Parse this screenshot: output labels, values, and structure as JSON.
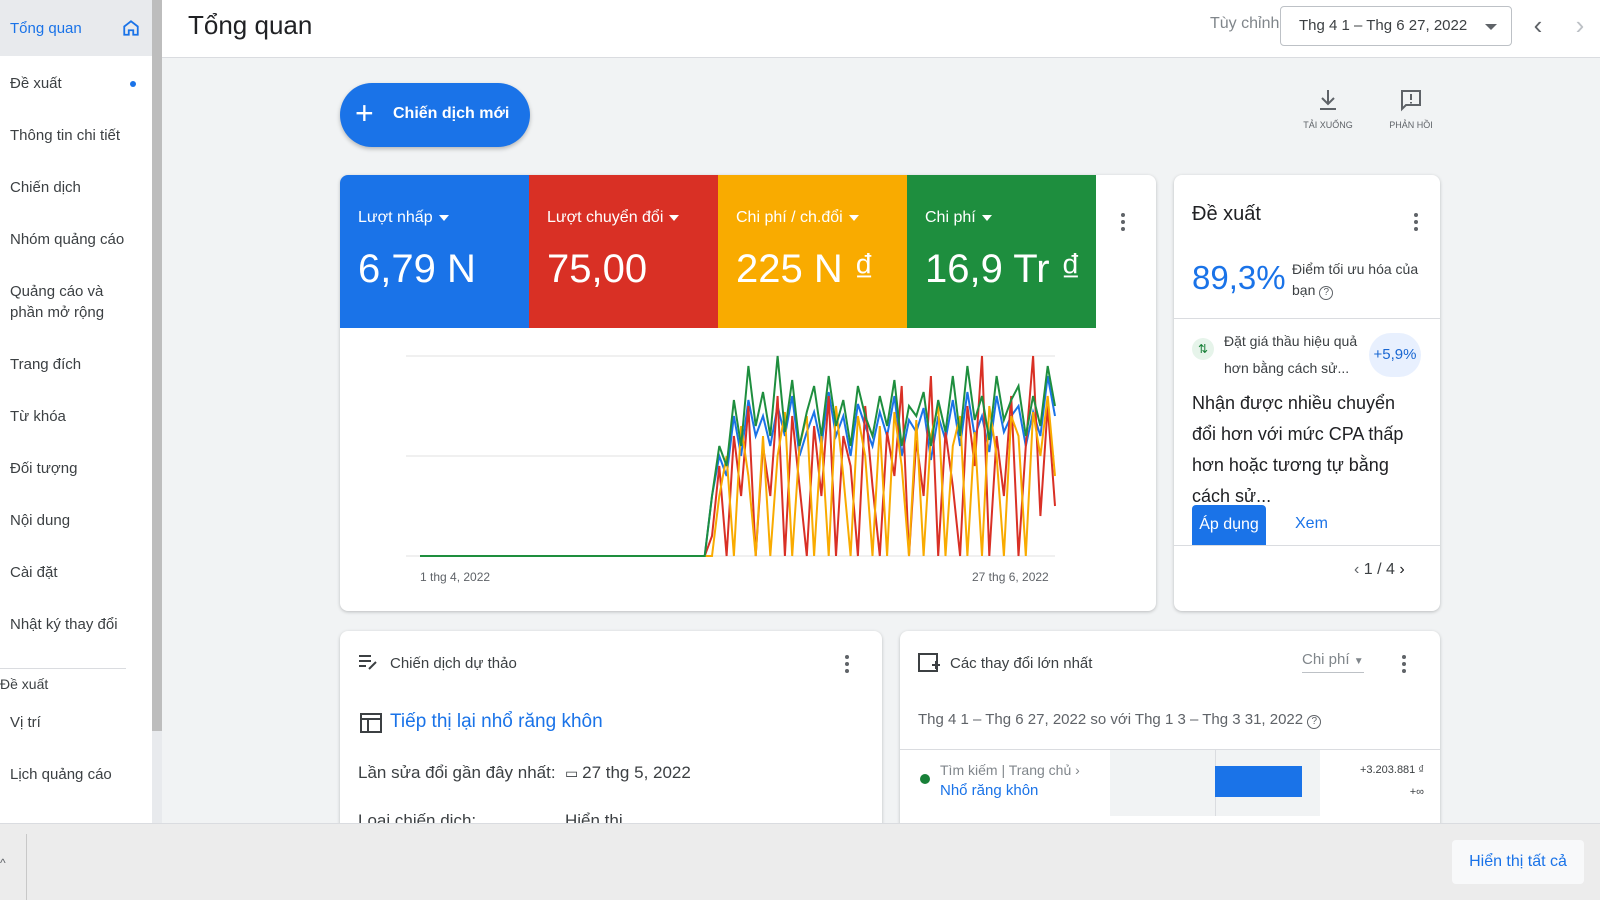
{
  "sidebar": {
    "items": [
      {
        "label": "Tổng quan",
        "active": true
      },
      {
        "label": "Đề xuất"
      },
      {
        "label": "Thông tin chi tiết"
      },
      {
        "label": "Chiến dịch"
      },
      {
        "label": "Nhóm quảng cáo"
      },
      {
        "label": "Quảng cáo và phần mở rộng"
      },
      {
        "label": "Trang đích"
      },
      {
        "label": "Từ khóa"
      },
      {
        "label": "Đối tượng"
      },
      {
        "label": "Nội dung"
      },
      {
        "label": "Cài đặt"
      },
      {
        "label": "Nhật ký thay đổi"
      }
    ],
    "section_label": "Đề xuất",
    "more_items": [
      {
        "label": "Vị trí"
      },
      {
        "label": "Lịch quảng cáo"
      }
    ]
  },
  "header": {
    "title": "Tổng quan",
    "custom_label": "Tùy chỉnh",
    "date_range": "Thg 4 1 – Thg 6 27, 2022",
    "prev_arrow": "‹",
    "next_arrow": "›"
  },
  "toolbar": {
    "new_campaign_label": "Chiến dịch mới",
    "download_label": "TẢI XUỐNG",
    "feedback_label": "PHẢN HỒI"
  },
  "metrics": [
    {
      "label": "Lượt nhấp",
      "value": "6,79 N",
      "color": "#1a73e8"
    },
    {
      "label": "Lượt chuyển đổi",
      "value": "75,00",
      "color": "#d93025"
    },
    {
      "label": "Chi phí / ch.đổi",
      "value": "225 N ₫",
      "color": "#f9ab00"
    },
    {
      "label": "Chi phí",
      "value": "16,9 Tr ₫",
      "color": "#1e8e3e"
    }
  ],
  "chart_data": {
    "type": "line",
    "x_start_label": "1 thg 4, 2022",
    "x_end_label": "27 thg 6, 2022",
    "points": 88,
    "grid": true,
    "series": [
      {
        "name": "Lượt nhấp",
        "color": "#1a73e8",
        "values": [
          0,
          0,
          0,
          0,
          0,
          0,
          0,
          0,
          0,
          0,
          0,
          0,
          0,
          0,
          0,
          0,
          0,
          0,
          0,
          0,
          0,
          0,
          0,
          0,
          0,
          0,
          0,
          0,
          0,
          0,
          0,
          0,
          0,
          0,
          0,
          0,
          0,
          0,
          0,
          0,
          0.3,
          0.5,
          0.4,
          0.7,
          0.5,
          0.78,
          0.6,
          0.7,
          0.55,
          0.75,
          0.6,
          0.8,
          0.5,
          0.62,
          0.72,
          0.55,
          0.82,
          0.6,
          0.7,
          0.5,
          0.76,
          0.65,
          0.55,
          0.72,
          0.6,
          0.8,
          0.5,
          0.68,
          0.62,
          0.74,
          0.48,
          0.7,
          0.58,
          0.78,
          0.55,
          0.82,
          0.6,
          0.7,
          0.52,
          0.8,
          0.62,
          0.7,
          0.75,
          0.55,
          0.72,
          0.6,
          0.9,
          0.7
        ]
      },
      {
        "name": "Lượt chuyển đổi",
        "color": "#d93025",
        "values": [
          0,
          0,
          0,
          0,
          0,
          0,
          0,
          0,
          0,
          0,
          0,
          0,
          0,
          0,
          0,
          0,
          0,
          0,
          0,
          0,
          0,
          0,
          0,
          0,
          0,
          0,
          0,
          0,
          0,
          0,
          0,
          0,
          0,
          0,
          0,
          0,
          0,
          0,
          0,
          0,
          0.1,
          0.45,
          0.0,
          0.6,
          0.3,
          0.75,
          0.0,
          0.55,
          0.3,
          0.8,
          0.0,
          0.7,
          0.35,
          0.0,
          0.65,
          0.3,
          0.8,
          0.0,
          0.6,
          0.45,
          0.0,
          0.75,
          0.35,
          0.0,
          0.62,
          0.4,
          0.85,
          0.0,
          0.58,
          0.3,
          0.9,
          0.0,
          0.62,
          0.35,
          0.0,
          0.75,
          0.45,
          1.0,
          0.0,
          0.6,
          0.3,
          0.8,
          0.0,
          0.55,
          1.0,
          0.2,
          0.75,
          0.25
        ]
      },
      {
        "name": "Chi phí / ch.đổi",
        "color": "#f9ab00",
        "values": [
          0,
          0,
          0,
          0,
          0,
          0,
          0,
          0,
          0,
          0,
          0,
          0,
          0,
          0,
          0,
          0,
          0,
          0,
          0,
          0,
          0,
          0,
          0,
          0,
          0,
          0,
          0,
          0,
          0,
          0,
          0,
          0,
          0,
          0,
          0,
          0,
          0,
          0,
          0,
          0,
          0,
          0.3,
          0.5,
          0.0,
          0.65,
          0.4,
          0.0,
          0.6,
          0.0,
          0.5,
          0.72,
          0.0,
          0.55,
          0.7,
          0.0,
          0.6,
          0.0,
          0.75,
          0.4,
          0.0,
          0.7,
          0.5,
          0.0,
          0.65,
          0.0,
          0.72,
          0.45,
          0.0,
          0.68,
          0.0,
          0.6,
          0.75,
          0.0,
          0.55,
          0.7,
          0.0,
          0.62,
          0.0,
          0.75,
          0.5,
          0.0,
          0.7,
          0.6,
          0.0,
          0.72,
          0.5,
          0.8,
          0.4
        ]
      },
      {
        "name": "Chi phí",
        "color": "#1e8e3e",
        "values": [
          0,
          0,
          0,
          0,
          0,
          0,
          0,
          0,
          0,
          0,
          0,
          0,
          0,
          0,
          0,
          0,
          0,
          0,
          0,
          0,
          0,
          0,
          0,
          0,
          0,
          0,
          0,
          0,
          0,
          0,
          0,
          0,
          0,
          0,
          0,
          0,
          0,
          0,
          0,
          0,
          0.3,
          0.55,
          0.45,
          0.78,
          0.55,
          0.95,
          0.65,
          0.82,
          0.6,
          1.0,
          0.62,
          0.88,
          0.55,
          0.72,
          0.85,
          0.6,
          0.9,
          0.65,
          0.78,
          0.55,
          0.85,
          0.7,
          0.6,
          0.8,
          0.65,
          0.88,
          0.55,
          0.75,
          0.7,
          0.82,
          0.55,
          0.78,
          0.62,
          0.9,
          0.6,
          0.95,
          0.68,
          0.8,
          0.58,
          0.9,
          0.68,
          0.78,
          0.85,
          0.6,
          0.8,
          0.65,
          0.95,
          0.75
        ]
      }
    ]
  },
  "recommendation": {
    "title": "Đề xuất",
    "score": "89,3%",
    "score_label": "Điểm tối ưu hóa của bạn",
    "sub_text": "Đặt giá thầu hiệu quả hơn bằng cách sử...",
    "badge": "+5,9%",
    "body": "Nhận được nhiều chuyển đổi hơn với mức CPA thấp hơn hoặc tương tự bằng cách sử...",
    "apply_label": "Áp dụng",
    "view_label": "Xem",
    "pager": "1 / 4"
  },
  "draft": {
    "title": "Chiến dịch dự thảo",
    "campaign_name": "Tiếp thị lại nhổ răng khôn",
    "last_edit_label": "Lần sửa đổi gần đây nhất:",
    "last_edit_value": "27 thg 5, 2022",
    "type_label": "Loại chiến dịch:",
    "type_value": "Hiển thị"
  },
  "changes": {
    "title": "Các thay đổi lớn nhất",
    "metric_select": "Chi phí",
    "range_text": "Thg 4 1 – Thg 6 27, 2022 so với Thg 1 3 – Thg 3 31, 2022",
    "row": {
      "crumb": "Tìm kiếm | Trang chủ ›",
      "name": "Nhổ răng khôn",
      "value": "+3.203.881 ₫",
      "change": "+∞"
    }
  },
  "bottom": {
    "show_all_label": "Hiển thị tất cả"
  }
}
